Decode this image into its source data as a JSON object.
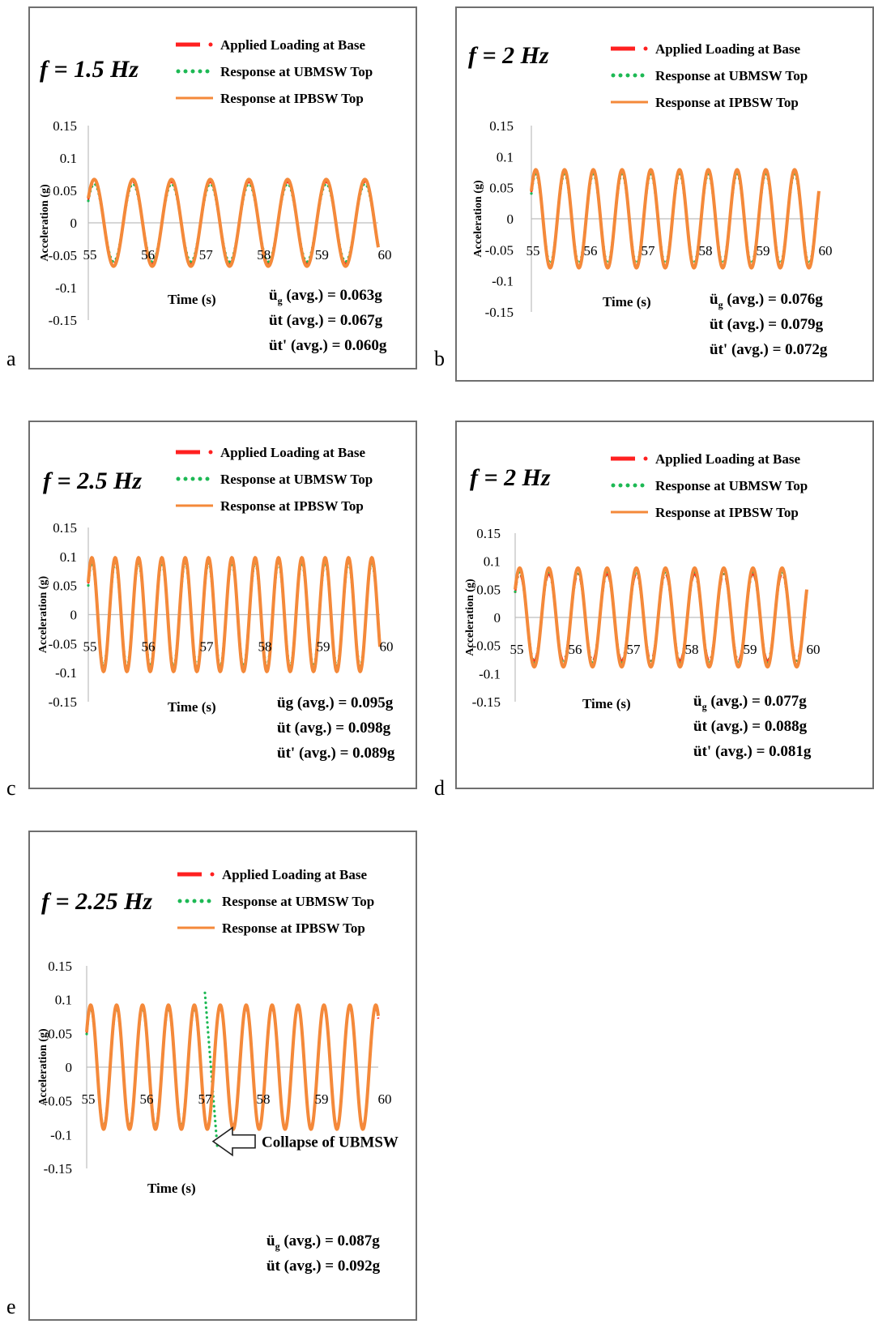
{
  "figure": {
    "panel_letters": [
      "a",
      "b",
      "c",
      "d",
      "e"
    ],
    "legend_labels": [
      "Applied Loading at Base",
      "Response at UBMSW Top",
      "Response at IPBSW Top"
    ],
    "ylabel": "Acceleration (g)",
    "xlabel": "Time (s)",
    "annotation_label": "Collapse of UBMSW"
  },
  "colors": {
    "base": "#ff2020",
    "ubmsw": "#1db954",
    "ipbsw": "#f4893a",
    "axis": "#bdbdbd",
    "frame": "#6f6f6f"
  },
  "chart_data": [
    {
      "type": "line",
      "title": "f = 1.5 Hz",
      "xlabel": "Time (s)",
      "ylabel": "Acceleration (g)",
      "xlim": [
        55,
        60
      ],
      "ylim": [
        -0.15,
        0.15
      ],
      "x_ticks": [
        "55",
        "56",
        "57",
        "58",
        "59",
        "60"
      ],
      "y_ticks": [
        "0.15",
        "0.1",
        "0.05",
        "0",
        "-0.05",
        "-0.1",
        "-0.15"
      ],
      "frequency_hz": 1.5,
      "series": [
        {
          "name": "Applied Loading at Base",
          "style": "dash-dot",
          "amplitude": 0.063
        },
        {
          "name": "Response at UBMSW Top",
          "style": "dotted",
          "amplitude": 0.06
        },
        {
          "name": "Response at IPBSW Top",
          "style": "solid",
          "amplitude": 0.067
        }
      ],
      "stats": [
        {
          "sym": "ü",
          "sub": "g",
          "rest": " (avg.) = 0.063g"
        },
        {
          "sym": "üt",
          "sub": "",
          "rest": " (avg.) = 0.067g"
        },
        {
          "sym": "üt'",
          "sub": "",
          "rest": " (avg.) = 0.060g"
        }
      ]
    },
    {
      "type": "line",
      "title": "f = 2 Hz",
      "xlabel": "Time (s)",
      "ylabel": "Acceleration (g)",
      "xlim": [
        55,
        60
      ],
      "ylim": [
        -0.15,
        0.15
      ],
      "x_ticks": [
        "55",
        "56",
        "57",
        "58",
        "59",
        "60"
      ],
      "y_ticks": [
        "0.15",
        "0.1",
        "0.05",
        "0",
        "-0.05",
        "-0.1",
        "-0.15"
      ],
      "frequency_hz": 2,
      "series": [
        {
          "name": "Applied Loading at Base",
          "style": "dash-dot",
          "amplitude": 0.076
        },
        {
          "name": "Response at UBMSW Top",
          "style": "dotted",
          "amplitude": 0.072
        },
        {
          "name": "Response at IPBSW Top",
          "style": "solid",
          "amplitude": 0.079
        }
      ],
      "stats": [
        {
          "sym": "ü",
          "sub": "g",
          "rest": " (avg.) = 0.076g"
        },
        {
          "sym": "üt",
          "sub": "",
          "rest": " (avg.) = 0.079g"
        },
        {
          "sym": "üt'",
          "sub": "",
          "rest": " (avg.) = 0.072g"
        }
      ]
    },
    {
      "type": "line",
      "title": "f = 2.5 Hz",
      "xlabel": "Time (s)",
      "ylabel": "Acceleration (g)",
      "xlim": [
        55,
        60
      ],
      "ylim": [
        -0.15,
        0.15
      ],
      "x_ticks": [
        "55",
        "56",
        "57",
        "58",
        "59",
        "60"
      ],
      "y_ticks": [
        "0.15",
        "0.1",
        "0.05",
        "0",
        "-0.05",
        "-0.1",
        "-0.15"
      ],
      "frequency_hz": 2.5,
      "series": [
        {
          "name": "Applied Loading at Base",
          "style": "dash-dot",
          "amplitude": 0.095
        },
        {
          "name": "Response at UBMSW Top",
          "style": "dotted",
          "amplitude": 0.089
        },
        {
          "name": "Response at IPBSW Top",
          "style": "solid",
          "amplitude": 0.098
        }
      ],
      "stats": [
        {
          "sym": "üg",
          "sub": "",
          "rest": "  (avg.) = 0.095g"
        },
        {
          "sym": "üt",
          "sub": "",
          "rest": " (avg.) = 0.098g"
        },
        {
          "sym": "üt'",
          "sub": "",
          "rest": " (avg.) = 0.089g"
        }
      ]
    },
    {
      "type": "line",
      "title": "f = 2 Hz",
      "xlabel": "Time (s)",
      "ylabel": "Acceleration (g)",
      "xlim": [
        55,
        60
      ],
      "ylim": [
        -0.15,
        0.15
      ],
      "x_ticks": [
        "55",
        "56",
        "57",
        "58",
        "59",
        "60"
      ],
      "y_ticks": [
        "0.15",
        "0.1",
        "0.05",
        "0",
        "-0.05",
        "-0.1",
        "-0.15"
      ],
      "frequency_hz": 2,
      "series": [
        {
          "name": "Applied Loading at Base",
          "style": "dash-dot",
          "amplitude": 0.077
        },
        {
          "name": "Response at UBMSW Top",
          "style": "dotted",
          "amplitude": 0.081
        },
        {
          "name": "Response at IPBSW Top",
          "style": "solid",
          "amplitude": 0.088
        }
      ],
      "stats": [
        {
          "sym": "ü",
          "sub": "g",
          "rest": " (avg.) = 0.077g"
        },
        {
          "sym": "üt",
          "sub": "",
          "rest": " (avg.) = 0.088g"
        },
        {
          "sym": "üt'",
          "sub": "",
          "rest": " (avg.) = 0.081g"
        }
      ]
    },
    {
      "type": "line",
      "title": "f = 2.25 Hz",
      "xlabel": "Time (s)",
      "ylabel": "Acceleration (g)",
      "xlim": [
        55,
        60
      ],
      "ylim": [
        -0.15,
        0.15
      ],
      "x_ticks": [
        "55",
        "56",
        "57",
        "58",
        "59",
        "60"
      ],
      "y_ticks": [
        "0.15",
        "0.1",
        "0.05",
        "0",
        "-0.05",
        "-0.1",
        "-0.15"
      ],
      "frequency_hz": 2.25,
      "series": [
        {
          "name": "Applied Loading at Base",
          "style": "dash-dot",
          "amplitude": 0.087
        },
        {
          "name": "Response at UBMSW Top",
          "style": "dotted",
          "amplitude": 0.087,
          "collapse_time": 57,
          "peak": 0.11,
          "trough": -0.12
        },
        {
          "name": "Response at IPBSW Top",
          "style": "solid",
          "amplitude": 0.092
        }
      ],
      "annotation": "Collapse of UBMSW",
      "stats": [
        {
          "sym": "ü",
          "sub": "g",
          "rest": " (avg.) = 0.087g"
        },
        {
          "sym": "üt",
          "sub": "",
          "rest": " (avg.) = 0.092g"
        }
      ]
    }
  ]
}
